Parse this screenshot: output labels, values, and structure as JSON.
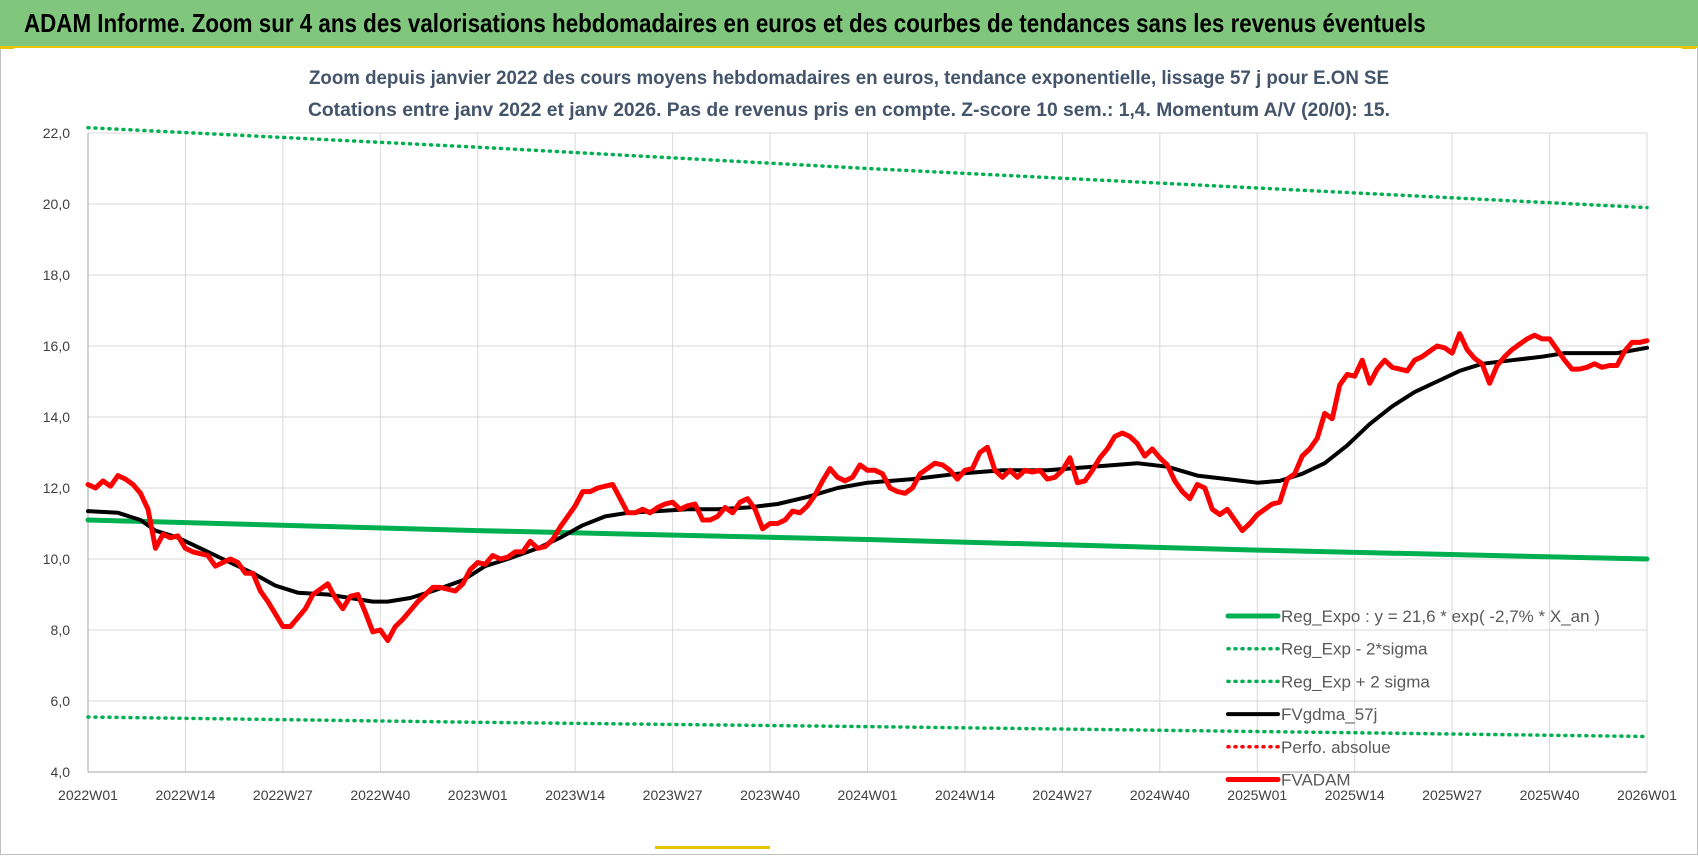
{
  "banner": {
    "title": "ADAM Informe. Zoom sur 4 ans des valorisations hebdomadaires en euros et des courbes de tendances sans les revenus éventuels"
  },
  "colors": {
    "banner_bg": "#80c77d",
    "regression": "#00b050",
    "fvgdma": "#000000",
    "fvadam": "#ff0000",
    "grid": "#d9d9d9"
  },
  "chart_data": {
    "type": "line",
    "title_line1": "Zoom depuis janvier 2022 des cours moyens hebdomadaires en euros, tendance exponentielle, lissage 57 j pour E.ON SE",
    "title_line2": "Cotations entre janv 2022 et janv 2026. Pas de revenus pris en compte. Z-score 10 sem.: 1,4. Momentum A/V (20/0): 15.",
    "ylim": [
      4,
      22
    ],
    "y_ticks": [
      "4,0",
      "6,0",
      "8,0",
      "10,0",
      "12,0",
      "14,0",
      "16,0",
      "18,0",
      "20,0",
      "22,0"
    ],
    "x_range_weeks": [
      0,
      208
    ],
    "x_ticks": [
      {
        "label": "2022W01",
        "week": 0
      },
      {
        "label": "2022W14",
        "week": 13
      },
      {
        "label": "2022W27",
        "week": 26
      },
      {
        "label": "2022W40",
        "week": 39
      },
      {
        "label": "2023W01",
        "week": 52
      },
      {
        "label": "2023W14",
        "week": 65
      },
      {
        "label": "2023W27",
        "week": 78
      },
      {
        "label": "2023W40",
        "week": 91
      },
      {
        "label": "2024W01",
        "week": 104
      },
      {
        "label": "2024W14",
        "week": 117
      },
      {
        "label": "2024W27",
        "week": 130
      },
      {
        "label": "2024W40",
        "week": 143
      },
      {
        "label": "2025W01",
        "week": 156
      },
      {
        "label": "2025W14",
        "week": 169
      },
      {
        "label": "2025W27",
        "week": 182
      },
      {
        "label": "2025W40",
        "week": 195
      },
      {
        "label": "2026W01",
        "week": 208
      }
    ],
    "grid": true,
    "legend_position": "bottom-right",
    "series": [
      {
        "name": "Reg_Expo : y = 21,6 * exp( -2,7% *  X_an )",
        "style": "solid-thick",
        "color": "#00b050",
        "points": [
          [
            0,
            11.1
          ],
          [
            52,
            10.8
          ],
          [
            104,
            10.55
          ],
          [
            156,
            10.25
          ],
          [
            208,
            10.0
          ]
        ]
      },
      {
        "name": "Reg_Exp - 2*sigma",
        "style": "dotted",
        "color": "#00b050",
        "points": [
          [
            0,
            5.55
          ],
          [
            52,
            5.4
          ],
          [
            104,
            5.28
          ],
          [
            156,
            5.14
          ],
          [
            208,
            5.0
          ]
        ]
      },
      {
        "name": "Reg_Exp + 2 sigma",
        "style": "dotted",
        "color": "#00b050",
        "points": [
          [
            0,
            22.15
          ],
          [
            52,
            21.6
          ],
          [
            104,
            21.0
          ],
          [
            156,
            20.45
          ],
          [
            208,
            19.9
          ]
        ]
      },
      {
        "name": "FVgdma_57j",
        "style": "solid",
        "color": "#000000",
        "points": [
          [
            0,
            11.35
          ],
          [
            4,
            11.3
          ],
          [
            7,
            11.1
          ],
          [
            9,
            10.8
          ],
          [
            12,
            10.6
          ],
          [
            15,
            10.3
          ],
          [
            18,
            10.0
          ],
          [
            22,
            9.6
          ],
          [
            25,
            9.25
          ],
          [
            28,
            9.05
          ],
          [
            32,
            9.0
          ],
          [
            35,
            8.9
          ],
          [
            38,
            8.8
          ],
          [
            40,
            8.8
          ],
          [
            43,
            8.9
          ],
          [
            46,
            9.1
          ],
          [
            50,
            9.4
          ],
          [
            53,
            9.8
          ],
          [
            56,
            10.0
          ],
          [
            60,
            10.3
          ],
          [
            63,
            10.6
          ],
          [
            66,
            10.95
          ],
          [
            69,
            11.2
          ],
          [
            72,
            11.3
          ],
          [
            76,
            11.35
          ],
          [
            80,
            11.4
          ],
          [
            84,
            11.4
          ],
          [
            88,
            11.45
          ],
          [
            92,
            11.55
          ],
          [
            96,
            11.75
          ],
          [
            100,
            12.0
          ],
          [
            104,
            12.15
          ],
          [
            110,
            12.25
          ],
          [
            116,
            12.4
          ],
          [
            122,
            12.5
          ],
          [
            128,
            12.5
          ],
          [
            134,
            12.6
          ],
          [
            140,
            12.7
          ],
          [
            144,
            12.6
          ],
          [
            148,
            12.35
          ],
          [
            152,
            12.25
          ],
          [
            156,
            12.15
          ],
          [
            159,
            12.2
          ],
          [
            162,
            12.4
          ],
          [
            165,
            12.7
          ],
          [
            168,
            13.2
          ],
          [
            171,
            13.8
          ],
          [
            174,
            14.3
          ],
          [
            177,
            14.7
          ],
          [
            180,
            15.0
          ],
          [
            183,
            15.3
          ],
          [
            186,
            15.5
          ],
          [
            190,
            15.6
          ],
          [
            194,
            15.7
          ],
          [
            197,
            15.8
          ],
          [
            200,
            15.8
          ],
          [
            204,
            15.8
          ],
          [
            208,
            15.95
          ]
        ]
      },
      {
        "name": "Perfo. absolue",
        "style": "dotted",
        "color": "#ff0000",
        "points": []
      },
      {
        "name": "FVADAM",
        "style": "solid-thick",
        "color": "#ff0000",
        "points": [
          [
            0,
            12.1
          ],
          [
            1,
            12.0
          ],
          [
            2,
            12.2
          ],
          [
            3,
            12.05
          ],
          [
            4,
            12.35
          ],
          [
            5,
            12.25
          ],
          [
            6,
            12.1
          ],
          [
            7,
            11.85
          ],
          [
            8,
            11.4
          ],
          [
            9,
            10.3
          ],
          [
            10,
            10.7
          ],
          [
            11,
            10.6
          ],
          [
            12,
            10.65
          ],
          [
            13,
            10.3
          ],
          [
            14,
            10.2
          ],
          [
            15,
            10.15
          ],
          [
            16,
            10.1
          ],
          [
            17,
            9.8
          ],
          [
            18,
            9.9
          ],
          [
            19,
            10.0
          ],
          [
            20,
            9.9
          ],
          [
            21,
            9.6
          ],
          [
            22,
            9.6
          ],
          [
            23,
            9.1
          ],
          [
            24,
            8.8
          ],
          [
            25,
            8.45
          ],
          [
            26,
            8.1
          ],
          [
            27,
            8.1
          ],
          [
            28,
            8.35
          ],
          [
            29,
            8.6
          ],
          [
            30,
            9.0
          ],
          [
            31,
            9.15
          ],
          [
            32,
            9.3
          ],
          [
            33,
            8.9
          ],
          [
            34,
            8.6
          ],
          [
            35,
            8.95
          ],
          [
            36,
            9.0
          ],
          [
            37,
            8.5
          ],
          [
            38,
            7.95
          ],
          [
            39,
            8.0
          ],
          [
            40,
            7.7
          ],
          [
            41,
            8.1
          ],
          [
            42,
            8.3
          ],
          [
            43,
            8.55
          ],
          [
            44,
            8.8
          ],
          [
            45,
            9.0
          ],
          [
            46,
            9.2
          ],
          [
            47,
            9.2
          ],
          [
            48,
            9.15
          ],
          [
            49,
            9.1
          ],
          [
            50,
            9.3
          ],
          [
            51,
            9.7
          ],
          [
            52,
            9.9
          ],
          [
            53,
            9.85
          ],
          [
            54,
            10.1
          ],
          [
            55,
            10.0
          ],
          [
            56,
            10.05
          ],
          [
            57,
            10.2
          ],
          [
            58,
            10.2
          ],
          [
            59,
            10.5
          ],
          [
            60,
            10.3
          ],
          [
            61,
            10.35
          ],
          [
            62,
            10.55
          ],
          [
            63,
            10.9
          ],
          [
            64,
            11.2
          ],
          [
            65,
            11.5
          ],
          [
            66,
            11.9
          ],
          [
            67,
            11.9
          ],
          [
            68,
            12.0
          ],
          [
            69,
            12.05
          ],
          [
            70,
            12.1
          ],
          [
            71,
            11.7
          ],
          [
            72,
            11.3
          ],
          [
            73,
            11.3
          ],
          [
            74,
            11.4
          ],
          [
            75,
            11.3
          ],
          [
            76,
            11.45
          ],
          [
            77,
            11.55
          ],
          [
            78,
            11.6
          ],
          [
            79,
            11.4
          ],
          [
            80,
            11.5
          ],
          [
            81,
            11.55
          ],
          [
            82,
            11.1
          ],
          [
            83,
            11.1
          ],
          [
            84,
            11.2
          ],
          [
            85,
            11.45
          ],
          [
            86,
            11.3
          ],
          [
            87,
            11.6
          ],
          [
            88,
            11.7
          ],
          [
            89,
            11.4
          ],
          [
            90,
            10.85
          ],
          [
            91,
            11.0
          ],
          [
            92,
            11.0
          ],
          [
            93,
            11.1
          ],
          [
            94,
            11.35
          ],
          [
            95,
            11.3
          ],
          [
            96,
            11.5
          ],
          [
            97,
            11.8
          ],
          [
            98,
            12.2
          ],
          [
            99,
            12.55
          ],
          [
            100,
            12.3
          ],
          [
            101,
            12.2
          ],
          [
            102,
            12.3
          ],
          [
            103,
            12.65
          ],
          [
            104,
            12.5
          ],
          [
            105,
            12.5
          ],
          [
            106,
            12.4
          ],
          [
            107,
            12.0
          ],
          [
            108,
            11.9
          ],
          [
            109,
            11.85
          ],
          [
            110,
            12.0
          ],
          [
            111,
            12.4
          ],
          [
            112,
            12.55
          ],
          [
            113,
            12.7
          ],
          [
            114,
            12.65
          ],
          [
            115,
            12.5
          ],
          [
            116,
            12.25
          ],
          [
            117,
            12.5
          ],
          [
            118,
            12.55
          ],
          [
            119,
            13.0
          ],
          [
            120,
            13.15
          ],
          [
            121,
            12.5
          ],
          [
            122,
            12.3
          ],
          [
            123,
            12.5
          ],
          [
            124,
            12.3
          ],
          [
            125,
            12.5
          ],
          [
            126,
            12.45
          ],
          [
            127,
            12.5
          ],
          [
            128,
            12.25
          ],
          [
            129,
            12.3
          ],
          [
            130,
            12.5
          ],
          [
            131,
            12.85
          ],
          [
            132,
            12.15
          ],
          [
            133,
            12.2
          ],
          [
            134,
            12.5
          ],
          [
            135,
            12.85
          ],
          [
            136,
            13.1
          ],
          [
            137,
            13.45
          ],
          [
            138,
            13.55
          ],
          [
            139,
            13.45
          ],
          [
            140,
            13.25
          ],
          [
            141,
            12.9
          ],
          [
            142,
            13.1
          ],
          [
            143,
            12.85
          ],
          [
            144,
            12.65
          ],
          [
            145,
            12.2
          ],
          [
            146,
            11.9
          ],
          [
            147,
            11.7
          ],
          [
            148,
            12.1
          ],
          [
            149,
            12.0
          ],
          [
            150,
            11.4
          ],
          [
            151,
            11.25
          ],
          [
            152,
            11.4
          ],
          [
            153,
            11.1
          ],
          [
            154,
            10.8
          ],
          [
            155,
            11.0
          ],
          [
            156,
            11.25
          ],
          [
            157,
            11.4
          ],
          [
            158,
            11.55
          ],
          [
            159,
            11.6
          ],
          [
            160,
            12.25
          ],
          [
            161,
            12.4
          ],
          [
            162,
            12.9
          ],
          [
            163,
            13.1
          ],
          [
            164,
            13.4
          ],
          [
            165,
            14.1
          ],
          [
            166,
            13.95
          ],
          [
            167,
            14.9
          ],
          [
            168,
            15.2
          ],
          [
            169,
            15.15
          ],
          [
            170,
            15.6
          ],
          [
            171,
            14.95
          ],
          [
            172,
            15.35
          ],
          [
            173,
            15.6
          ],
          [
            174,
            15.4
          ],
          [
            175,
            15.35
          ],
          [
            176,
            15.3
          ],
          [
            177,
            15.6
          ],
          [
            178,
            15.7
          ],
          [
            179,
            15.85
          ],
          [
            180,
            16.0
          ],
          [
            181,
            15.95
          ],
          [
            182,
            15.8
          ],
          [
            183,
            16.35
          ],
          [
            184,
            15.9
          ],
          [
            185,
            15.65
          ],
          [
            186,
            15.5
          ],
          [
            187,
            14.95
          ],
          [
            188,
            15.45
          ],
          [
            189,
            15.7
          ],
          [
            190,
            15.9
          ],
          [
            191,
            16.05
          ],
          [
            192,
            16.2
          ],
          [
            193,
            16.3
          ],
          [
            194,
            16.2
          ],
          [
            195,
            16.2
          ],
          [
            196,
            15.9
          ],
          [
            197,
            15.6
          ],
          [
            198,
            15.35
          ],
          [
            199,
            15.35
          ],
          [
            200,
            15.4
          ],
          [
            201,
            15.5
          ],
          [
            202,
            15.4
          ],
          [
            203,
            15.45
          ],
          [
            204,
            15.45
          ],
          [
            205,
            15.85
          ],
          [
            206,
            16.1
          ],
          [
            207,
            16.1
          ],
          [
            208,
            16.15
          ]
        ]
      }
    ]
  }
}
